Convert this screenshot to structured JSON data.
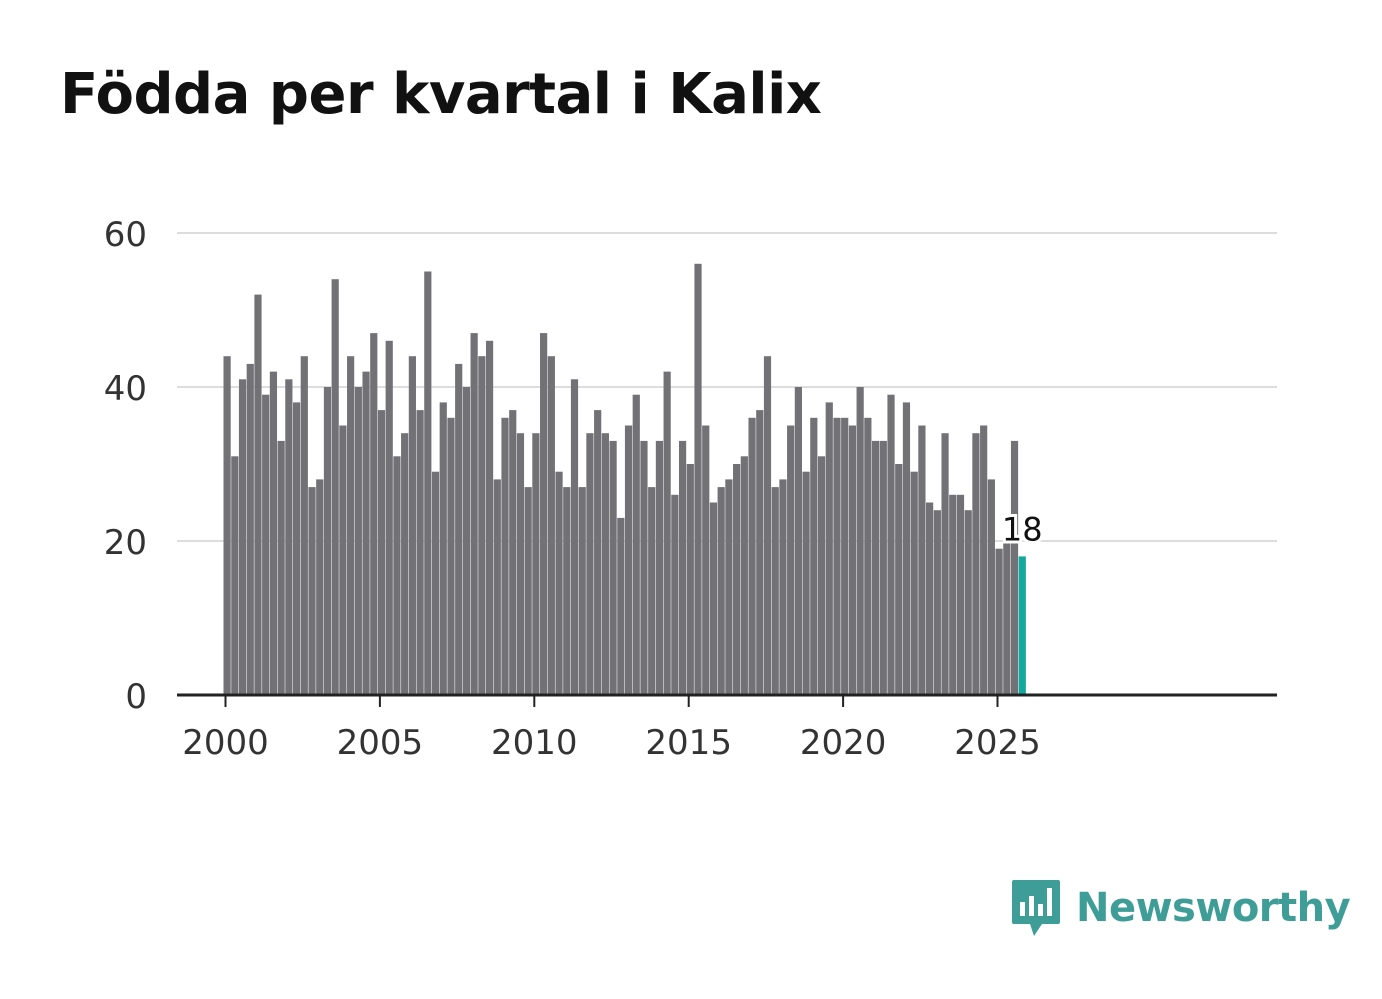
{
  "title": "Födda per kvartal i Kalix",
  "brand": {
    "name": "Newsworthy",
    "color": "#3f9d98"
  },
  "colors": {
    "bar": "#727276",
    "highlight": "#13a89e",
    "grid": "#dddddd",
    "axis": "#222222",
    "tick_text": "#333333"
  },
  "chart_data": {
    "type": "bar",
    "title": "Födda per kvartal i Kalix",
    "xlabel": "",
    "ylabel": "",
    "ylim": [
      0,
      60
    ],
    "yticks": [
      0,
      20,
      40,
      60
    ],
    "xticks": [
      2000,
      2005,
      2010,
      2015,
      2020,
      2025
    ],
    "grid": true,
    "start": "2000 Q1",
    "end": "2025 Q4",
    "highlight": {
      "label": "18",
      "value": 18,
      "period": "2025 Q4"
    },
    "values": [
      44,
      31,
      41,
      43,
      52,
      39,
      42,
      33,
      41,
      38,
      44,
      27,
      28,
      40,
      54,
      35,
      44,
      40,
      42,
      47,
      37,
      46,
      31,
      34,
      44,
      37,
      55,
      29,
      38,
      36,
      43,
      40,
      47,
      44,
      46,
      28,
      36,
      37,
      34,
      27,
      34,
      47,
      44,
      29,
      27,
      41,
      27,
      34,
      37,
      34,
      33,
      23,
      35,
      39,
      33,
      27,
      33,
      42,
      26,
      33,
      30,
      56,
      35,
      25,
      27,
      28,
      30,
      31,
      36,
      37,
      44,
      27,
      28,
      35,
      40,
      29,
      36,
      31,
      38,
      36,
      36,
      35,
      40,
      36,
      33,
      33,
      39,
      30,
      38,
      29,
      35,
      25,
      24,
      34,
      26,
      26,
      24,
      34,
      35,
      28,
      19,
      20,
      33,
      18
    ]
  }
}
